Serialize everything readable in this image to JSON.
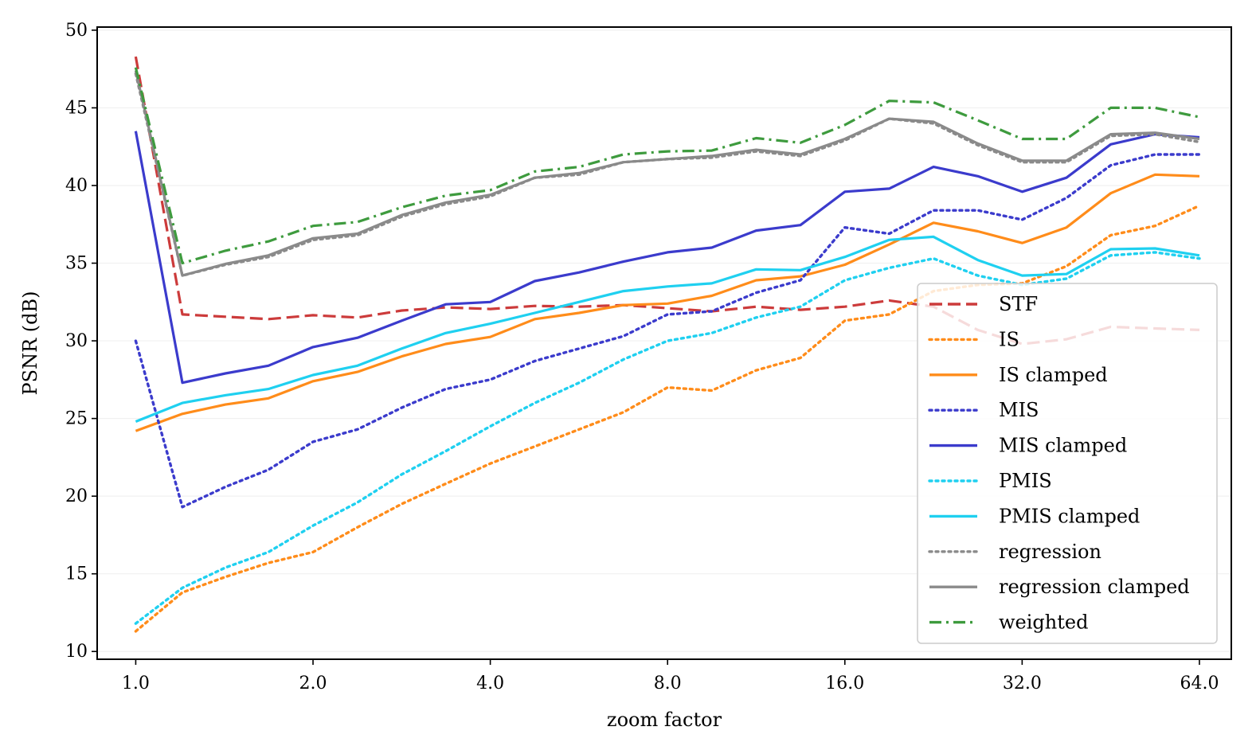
{
  "chart_data": {
    "type": "line",
    "title": "",
    "xlabel": "zoom factor",
    "ylabel": "PSNR (dB)",
    "xscale": "log2",
    "xlim": [
      0.86,
      72.5
    ],
    "ylim": [
      9.5,
      50.2
    ],
    "x_ticks": [
      1,
      2,
      4,
      8,
      16,
      32,
      64
    ],
    "x_tick_labels": [
      "1.0",
      "2.0",
      "4.0",
      "8.0",
      "16.0",
      "32.0",
      "64.0"
    ],
    "y_ticks": [
      10,
      15,
      20,
      25,
      30,
      35,
      40,
      45,
      50
    ],
    "y_tick_labels": [
      "10",
      "15",
      "20",
      "25",
      "30",
      "35",
      "40",
      "45",
      "50"
    ],
    "grid": "horizontal-light",
    "legend_position": "lower-right",
    "x": [
      1.0,
      1.2,
      1.42,
      1.68,
      2.0,
      2.38,
      2.83,
      3.36,
      4.0,
      4.76,
      5.66,
      6.73,
      8.0,
      9.51,
      11.31,
      13.45,
      16.0,
      19.03,
      22.63,
      26.91,
      32.0,
      38.05,
      45.25,
      53.82,
      64.0
    ],
    "series": [
      {
        "name": "STF",
        "color": "#cc3b3b",
        "style": "dashed",
        "values": [
          48.3,
          31.7,
          31.55,
          31.4,
          31.65,
          31.5,
          31.95,
          32.15,
          32.05,
          32.25,
          32.2,
          32.3,
          32.1,
          31.9,
          32.2,
          32.0,
          32.2,
          32.6,
          32.2,
          30.7,
          29.8,
          30.1,
          30.9,
          30.8,
          30.7
        ]
      },
      {
        "name": "IS",
        "color": "#ff8c1a",
        "style": "dotted",
        "values": [
          11.3,
          13.8,
          14.8,
          15.7,
          16.4,
          18.0,
          19.5,
          20.8,
          22.1,
          23.2,
          24.3,
          25.4,
          27.0,
          26.8,
          28.1,
          28.9,
          31.3,
          31.7,
          33.2,
          33.6,
          33.7,
          34.8,
          36.8,
          37.4,
          38.7
        ]
      },
      {
        "name": "IS clamped",
        "color": "#ff8c1a",
        "style": "solid",
        "values": [
          24.2,
          25.3,
          25.9,
          26.3,
          27.4,
          28.0,
          29.0,
          29.8,
          30.25,
          31.4,
          31.8,
          32.3,
          32.4,
          32.9,
          33.9,
          34.15,
          34.9,
          36.2,
          37.6,
          37.05,
          36.3,
          37.3,
          39.5,
          40.7,
          40.6
        ]
      },
      {
        "name": "MIS",
        "color": "#3b3bcc",
        "style": "dotted",
        "values": [
          30.0,
          19.3,
          20.6,
          21.7,
          23.5,
          24.3,
          25.7,
          26.9,
          27.5,
          28.7,
          29.5,
          30.3,
          31.7,
          31.9,
          33.1,
          33.9,
          37.3,
          36.9,
          38.4,
          38.4,
          37.8,
          39.2,
          41.3,
          42.0,
          42.0
        ]
      },
      {
        "name": "MIS clamped",
        "color": "#3b3bcc",
        "style": "solid",
        "values": [
          43.5,
          27.3,
          27.9,
          28.4,
          29.6,
          30.2,
          31.3,
          32.35,
          32.5,
          33.85,
          34.4,
          35.1,
          35.7,
          36.0,
          37.1,
          37.45,
          39.6,
          39.8,
          41.2,
          40.6,
          39.6,
          40.5,
          42.65,
          43.3,
          43.1
        ]
      },
      {
        "name": "PMIS",
        "color": "#1fd0f0",
        "style": "dotted",
        "values": [
          11.8,
          14.1,
          15.4,
          16.4,
          18.1,
          19.6,
          21.4,
          22.9,
          24.5,
          26.0,
          27.3,
          28.8,
          30.0,
          30.5,
          31.5,
          32.2,
          33.9,
          34.7,
          35.3,
          34.2,
          33.6,
          34.0,
          35.5,
          35.7,
          35.3
        ]
      },
      {
        "name": "PMIS clamped",
        "color": "#1fd0f0",
        "style": "solid",
        "values": [
          24.8,
          26.0,
          26.5,
          26.9,
          27.8,
          28.4,
          29.5,
          30.5,
          31.1,
          31.8,
          32.5,
          33.2,
          33.5,
          33.7,
          34.6,
          34.55,
          35.4,
          36.5,
          36.7,
          35.2,
          34.2,
          34.3,
          35.9,
          35.95,
          35.5
        ]
      },
      {
        "name": "regression",
        "color": "#8a8a8a",
        "style": "dotted",
        "values": [
          47.2,
          34.2,
          34.9,
          35.4,
          36.5,
          36.8,
          38.0,
          38.8,
          39.3,
          40.5,
          40.7,
          41.5,
          41.7,
          41.8,
          42.2,
          41.9,
          42.9,
          44.3,
          44.0,
          42.6,
          41.5,
          41.5,
          43.2,
          43.3,
          42.8
        ]
      },
      {
        "name": "regression clamped",
        "color": "#8a8a8a",
        "style": "solid",
        "values": [
          47.4,
          34.2,
          34.95,
          35.5,
          36.6,
          36.9,
          38.1,
          38.9,
          39.4,
          40.5,
          40.8,
          41.5,
          41.7,
          41.9,
          42.3,
          42.0,
          43.0,
          44.3,
          44.1,
          42.7,
          41.6,
          41.6,
          43.3,
          43.4,
          43.0
        ]
      },
      {
        "name": "weighted",
        "color": "#3e9b3e",
        "style": "dashdot",
        "values": [
          47.6,
          35.0,
          35.8,
          36.4,
          37.4,
          37.65,
          38.6,
          39.35,
          39.7,
          40.9,
          41.2,
          42.0,
          42.2,
          42.25,
          43.05,
          42.75,
          43.9,
          45.45,
          45.35,
          44.2,
          43.0,
          43.0,
          45.0,
          45.0,
          44.4
        ]
      }
    ]
  }
}
